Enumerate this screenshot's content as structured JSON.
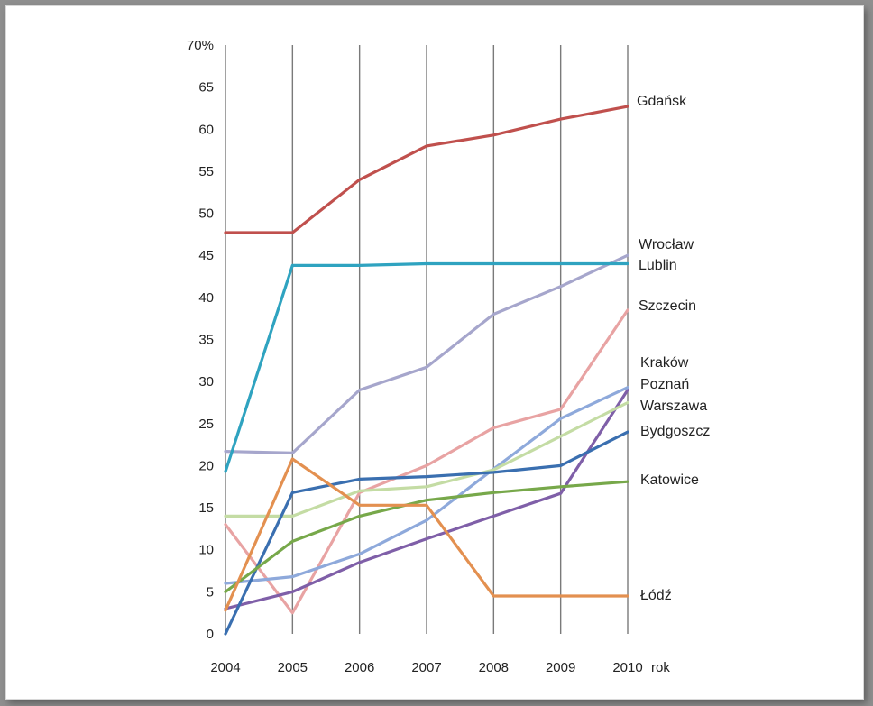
{
  "chart_data": {
    "type": "line",
    "title": "",
    "xlabel": "rok",
    "ylabel": "",
    "x": [
      "2004",
      "2005",
      "2006",
      "2007",
      "2008",
      "2009",
      "2010"
    ],
    "ylim": [
      0,
      70
    ],
    "yticks": [
      "0",
      "5",
      "10",
      "15",
      "20",
      "25",
      "30",
      "35",
      "40",
      "45",
      "50",
      "55",
      "60",
      "65",
      "70%"
    ],
    "grid": "vertical",
    "series": [
      {
        "name": "Gdańsk",
        "color": "#c0504d",
        "values": [
          47.7,
          47.7,
          54,
          58,
          59.3,
          61.2,
          62.7
        ]
      },
      {
        "name": "Wrocław",
        "color": "#a6a6cc",
        "values": [
          21.7,
          21.5,
          29,
          31.7,
          38,
          41.3,
          45
        ]
      },
      {
        "name": "Lublin",
        "color": "#2fa3c0",
        "values": [
          19.3,
          43.8,
          43.8,
          44,
          44,
          44,
          44
        ]
      },
      {
        "name": "Szczecin",
        "color": "#e8a3a3",
        "values": [
          13,
          2.5,
          16.8,
          20,
          24.5,
          26.7,
          38.5
        ]
      },
      {
        "name": "Kraków",
        "color": "#7f5fa8",
        "values": [
          3,
          5,
          8.5,
          11.3,
          14,
          16.7,
          29
        ]
      },
      {
        "name": "Poznań",
        "color": "#8ea9db",
        "values": [
          6,
          6.8,
          9.5,
          13.5,
          19.6,
          25.6,
          29.3
        ]
      },
      {
        "name": "Warszawa",
        "color": "#c4dca4",
        "values": [
          14,
          14,
          17,
          17.5,
          19.5,
          23.5,
          27.5
        ]
      },
      {
        "name": "Bydgoszcz",
        "color": "#3a6fb0",
        "values": [
          0,
          16.8,
          18.4,
          18.7,
          19.2,
          20,
          24
        ]
      },
      {
        "name": "Katowice",
        "color": "#77a84a",
        "values": [
          5,
          11,
          14,
          15.9,
          16.8,
          17.5,
          18.1
        ]
      },
      {
        "name": "Łódź",
        "color": "#e39050",
        "values": [
          2.8,
          20.8,
          15.3,
          15.3,
          4.5,
          4.5,
          4.5
        ]
      }
    ]
  }
}
